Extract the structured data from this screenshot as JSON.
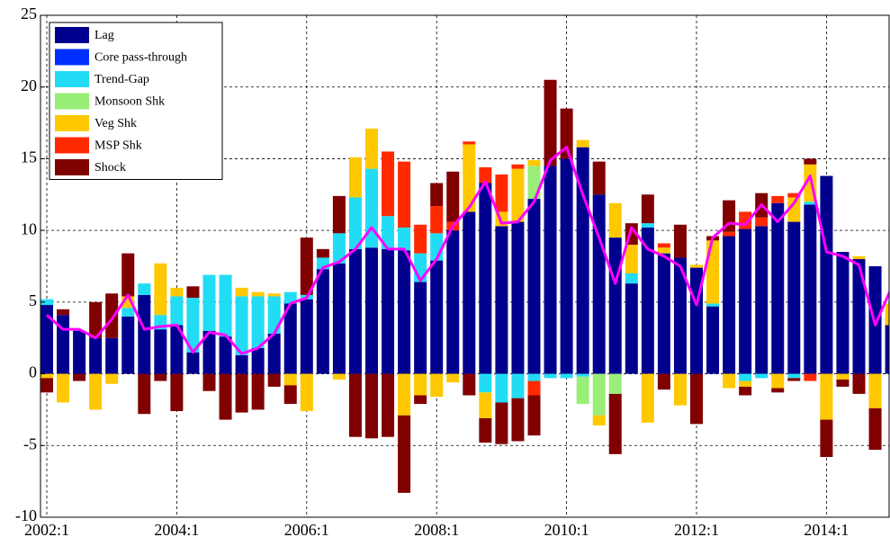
{
  "chart_data": {
    "type": "bar",
    "stacked": true,
    "grid": true,
    "legend": "upper-left",
    "categories": [
      "2002:1",
      null,
      null,
      null,
      null,
      null,
      null,
      null,
      "2004:1",
      null,
      null,
      null,
      null,
      null,
      null,
      null,
      "2006:1",
      null,
      null,
      null,
      null,
      null,
      null,
      null,
      "2008:1",
      null,
      null,
      null,
      null,
      null,
      null,
      null,
      "2010:1",
      null,
      null,
      null,
      null,
      null,
      null,
      null,
      "2012:1",
      null,
      null,
      null,
      null,
      null,
      null,
      null,
      "2014:1",
      null,
      null,
      null,
      null
    ],
    "ylim": [
      -10,
      25
    ],
    "yticks": [
      -10,
      -5,
      0,
      5,
      10,
      15,
      20,
      25
    ],
    "series": [
      {
        "name": "Lag",
        "color": "#00008f",
        "values": [
          4.8,
          4.1,
          3.0,
          2.5,
          2.5,
          4.0,
          5.5,
          3.1,
          3.4,
          1.5,
          3.0,
          2.6,
          1.3,
          1.8,
          2.8,
          4.9,
          5.2,
          7.3,
          7.7,
          8.7,
          8.8,
          8.7,
          8.6,
          6.4,
          7.9,
          10.0,
          11.3,
          13.3,
          10.3,
          10.6,
          12.2,
          14.5,
          15.0,
          15.8,
          12.5,
          9.5,
          6.3,
          10.2,
          8.4,
          8.1,
          7.4,
          4.7,
          9.6,
          10.1,
          10.3,
          11.9,
          10.6,
          11.8,
          13.8,
          8.5,
          8.0,
          7.5,
          3.4
        ]
      },
      {
        "name": "Core pass-through",
        "color": "#0030ff",
        "values": [
          0,
          0,
          0,
          0,
          0,
          0,
          0,
          0,
          0,
          0,
          0,
          0,
          0,
          0,
          0,
          0,
          0,
          0,
          0,
          0,
          0,
          0,
          0,
          0,
          0,
          0,
          0,
          0,
          0,
          0,
          0,
          0,
          0,
          0,
          0,
          0,
          0,
          0,
          0,
          0,
          0,
          0,
          0,
          0,
          0,
          0,
          0,
          0,
          0,
          0,
          0,
          0,
          0
        ]
      },
      {
        "name": "Trend-Gap",
        "color": "#22dcf5",
        "values": [
          0.4,
          0,
          0,
          0,
          0,
          0.6,
          0.8,
          1.0,
          2.0,
          3.8,
          3.9,
          4.3,
          4.1,
          3.6,
          2.6,
          0.8,
          0.3,
          0.8,
          2.1,
          3.6,
          5.5,
          2.3,
          1.6,
          2.0,
          1.9,
          0,
          0,
          -1.3,
          -2.0,
          -1.7,
          -0.5,
          -0.3,
          -0.3,
          -0.2,
          0,
          0,
          0.7,
          0.3,
          0,
          0,
          0,
          0.2,
          0,
          -0.5,
          -0.3,
          0,
          -0.3,
          0.2,
          0,
          0,
          0,
          0,
          0
        ]
      },
      {
        "name": "Monsoon Shk",
        "color": "#99ee77",
        "values": [
          0,
          0,
          0,
          0,
          0,
          0,
          0,
          0,
          0,
          0,
          0,
          0,
          0,
          0,
          0,
          0,
          0,
          0,
          0,
          0,
          0,
          0,
          0,
          0,
          0,
          0,
          0,
          0,
          0,
          0,
          2.3,
          0,
          0,
          -1.9,
          -2.9,
          -1.4,
          0,
          0,
          0,
          0,
          0,
          0,
          0,
          0,
          0,
          0,
          0,
          0,
          0,
          0,
          0,
          0,
          0
        ]
      },
      {
        "name": "Veg Shk",
        "color": "#ffc800",
        "values": [
          -0.3,
          -2.0,
          0,
          -2.5,
          -0.7,
          0.8,
          0,
          3.6,
          0.6,
          0,
          0,
          0,
          0.6,
          0.3,
          0.2,
          -0.8,
          -2.6,
          0,
          -0.4,
          2.8,
          2.8,
          0,
          -2.9,
          -1.5,
          -1.6,
          -0.6,
          4.7,
          -1.8,
          1.0,
          3.7,
          0.4,
          0,
          0,
          0.5,
          -0.7,
          2.4,
          2.0,
          -3.4,
          0.4,
          -2.2,
          0.2,
          4.4,
          -1.0,
          -0.4,
          0,
          -1.0,
          1.7,
          2.6,
          -3.2,
          -0.4,
          0.2,
          -2.4,
          1.5
        ]
      },
      {
        "name": "MSP Shk",
        "color": "#ff2a00",
        "values": [
          0,
          0,
          0,
          0,
          0,
          0,
          0,
          0,
          0,
          0,
          0,
          0,
          0,
          0,
          0,
          0,
          0,
          0,
          0,
          0,
          0,
          4.5,
          4.6,
          2.0,
          1.9,
          0.6,
          0.2,
          1.1,
          2.6,
          0.3,
          -1.0,
          0,
          0,
          0,
          0,
          0,
          0,
          0,
          0.3,
          0,
          0,
          0,
          0.3,
          1.2,
          0.6,
          0.5,
          0.3,
          -0.5,
          0,
          0,
          0,
          0,
          0
        ]
      },
      {
        "name": "Shock",
        "color": "#800000",
        "values": [
          -1.0,
          0.4,
          -0.5,
          2.5,
          3.1,
          3.0,
          -2.8,
          -0.5,
          -2.6,
          0.8,
          -1.2,
          -3.2,
          -2.7,
          -2.5,
          -0.9,
          -1.3,
          4.0,
          0.6,
          2.6,
          -4.4,
          -4.5,
          -4.4,
          -5.4,
          -0.6,
          1.6,
          3.5,
          -1.5,
          -1.7,
          -2.9,
          -3.0,
          -2.8,
          6.0,
          3.5,
          0,
          2.3,
          -4.2,
          1.5,
          2.0,
          -1.1,
          2.3,
          -3.5,
          0.3,
          2.2,
          -0.6,
          1.7,
          -0.3,
          -0.2,
          0.4,
          -2.6,
          -0.5,
          -1.4,
          -2.9,
          0
        ]
      },
      {
        "type": "line",
        "color": "#ff00ff",
        "values": [
          4.1,
          3.1,
          3.1,
          2.5,
          3.8,
          5.5,
          3.1,
          3.3,
          3.4,
          1.5,
          2.9,
          2.7,
          1.4,
          1.8,
          2.8,
          4.9,
          5.3,
          7.4,
          7.8,
          8.7,
          10.2,
          8.7,
          8.7,
          6.5,
          8.0,
          10.3,
          11.6,
          13.4,
          10.5,
          10.6,
          12.0,
          14.9,
          15.8,
          12.5,
          9.5,
          6.3,
          10.2,
          8.7,
          8.2,
          7.5,
          4.8,
          9.5,
          10.5,
          10.4,
          11.8,
          10.6,
          11.9,
          13.8,
          8.5,
          8.2,
          7.6,
          3.4,
          6.0
        ]
      }
    ]
  }
}
